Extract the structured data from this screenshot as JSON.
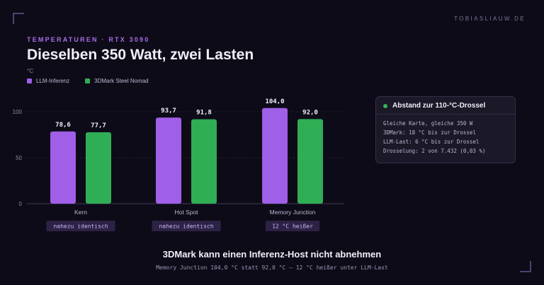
{
  "brand": "TOBIASLIAUW.DE",
  "eyebrow": "TEMPERATUREN · RTX 3090",
  "title": "Dieselben 350 Watt, zwei Lasten",
  "colors": {
    "purple": "#9f5fe6",
    "green": "#2fae55",
    "badge_bg": "#2b2245",
    "badge_text": "#cdb6f3"
  },
  "chart_data": {
    "type": "bar",
    "ylabel": "°C",
    "ylim": [
      0,
      120
    ],
    "yticks": [
      0,
      50,
      100
    ],
    "legend_position": "top-left",
    "categories": [
      "Kern",
      "Hot Spot",
      "Memory Junction"
    ],
    "series": [
      {
        "name": "LLM-Inferenz",
        "values": [
          78.6,
          93.7,
          104.0
        ],
        "labels": [
          "78,6",
          "93,7",
          "104,0"
        ],
        "color": "#9f5fe6"
      },
      {
        "name": "3DMark Steel Nomad",
        "values": [
          77.7,
          91.8,
          92.0
        ],
        "labels": [
          "77,7",
          "91,8",
          "92,0"
        ],
        "color": "#2fae55"
      }
    ],
    "badges": [
      "nahezu identisch",
      "nahezu identisch",
      "12 °C heißer"
    ]
  },
  "card": {
    "title": "Abstand zur 110-°C-Drossel",
    "lines": [
      "Gleiche Karte, gleiche 350 W",
      "3DMark: 18 °C bis zur Drossel",
      "LLM-Last: 6 °C bis zur Drossel",
      "Drosselung: 2 von 7.432 (0,03 %)"
    ]
  },
  "footer": {
    "title": "3DMark kann einen Inferenz-Host nicht abnehmen",
    "subtitle": "Memory Junction 104,0 °C statt 92,0 °C — 12 °C heißer unter LLM-Last"
  }
}
